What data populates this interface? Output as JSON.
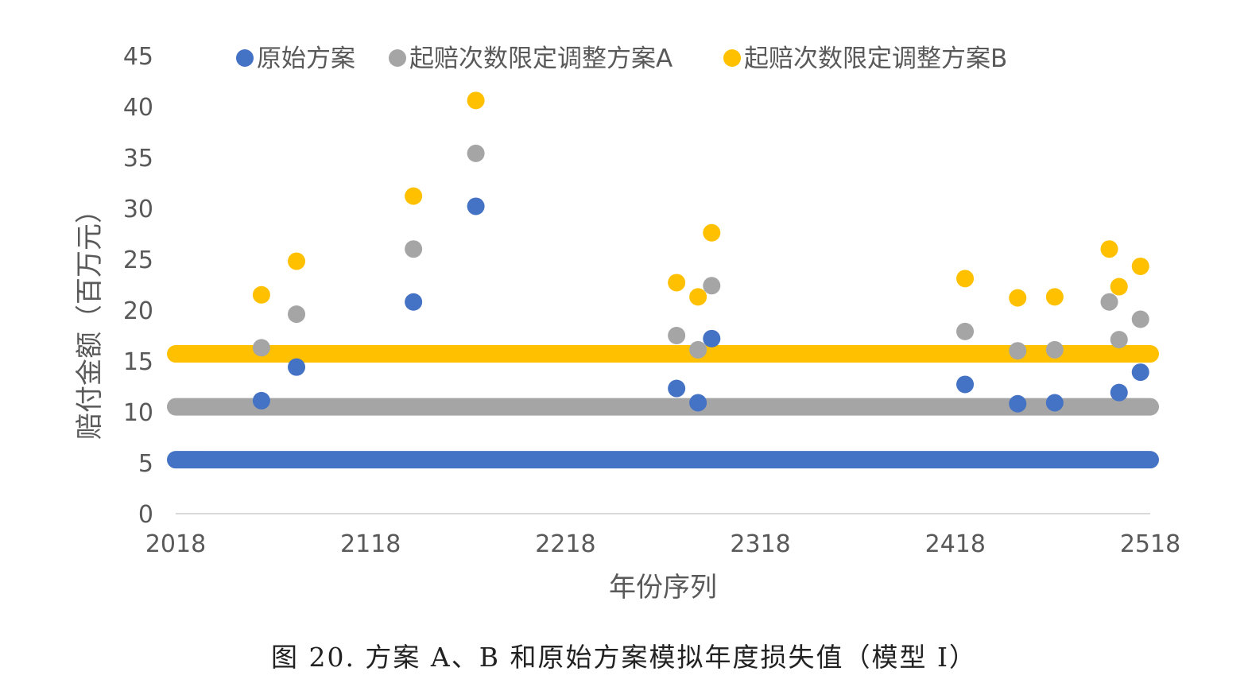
{
  "caption": "图 20. 方案 A、B 和原始方案模拟年度损失值（模型 I）",
  "chart_data": {
    "type": "scatter",
    "title": "",
    "xlabel": "年份序列",
    "ylabel": "赔付金额（百万元）",
    "xlim": [
      2018,
      2518
    ],
    "ylim": [
      0,
      45
    ],
    "xticks": [
      2018,
      2118,
      2218,
      2318,
      2418,
      2518
    ],
    "yticks": [
      0,
      5,
      10,
      15,
      20,
      25,
      30,
      35,
      40,
      45
    ],
    "grid": false,
    "legend_position": "top",
    "series": [
      {
        "name": "原始方案",
        "color": "#4472C4",
        "baseline": 5.3,
        "points": [
          [
            2062,
            11.1
          ],
          [
            2080,
            14.4
          ],
          [
            2140,
            20.8
          ],
          [
            2172,
            30.2
          ],
          [
            2275,
            12.3
          ],
          [
            2286,
            10.9
          ],
          [
            2293,
            17.2
          ],
          [
            2423,
            12.7
          ],
          [
            2450,
            10.8
          ],
          [
            2469,
            10.9
          ],
          [
            2502,
            11.9
          ],
          [
            2513,
            13.9
          ]
        ]
      },
      {
        "name": "起赔次数限定调整方案A",
        "color": "#A5A5A5",
        "baseline": 10.5,
        "points": [
          [
            2062,
            16.3
          ],
          [
            2080,
            19.6
          ],
          [
            2140,
            26.0
          ],
          [
            2172,
            35.4
          ],
          [
            2275,
            17.5
          ],
          [
            2286,
            16.1
          ],
          [
            2293,
            22.4
          ],
          [
            2423,
            17.9
          ],
          [
            2450,
            16.0
          ],
          [
            2469,
            16.1
          ],
          [
            2497,
            20.8
          ],
          [
            2502,
            17.1
          ],
          [
            2513,
            19.1
          ]
        ]
      },
      {
        "name": "起赔次数限定调整方案B",
        "color": "#FFC000",
        "baseline": 15.7,
        "points": [
          [
            2062,
            21.5
          ],
          [
            2080,
            24.8
          ],
          [
            2140,
            31.2
          ],
          [
            2172,
            40.6
          ],
          [
            2275,
            22.7
          ],
          [
            2286,
            21.3
          ],
          [
            2293,
            27.6
          ],
          [
            2423,
            23.1
          ],
          [
            2450,
            21.2
          ],
          [
            2469,
            21.3
          ],
          [
            2497,
            26.0
          ],
          [
            2502,
            22.3
          ],
          [
            2513,
            24.3
          ]
        ]
      }
    ]
  }
}
